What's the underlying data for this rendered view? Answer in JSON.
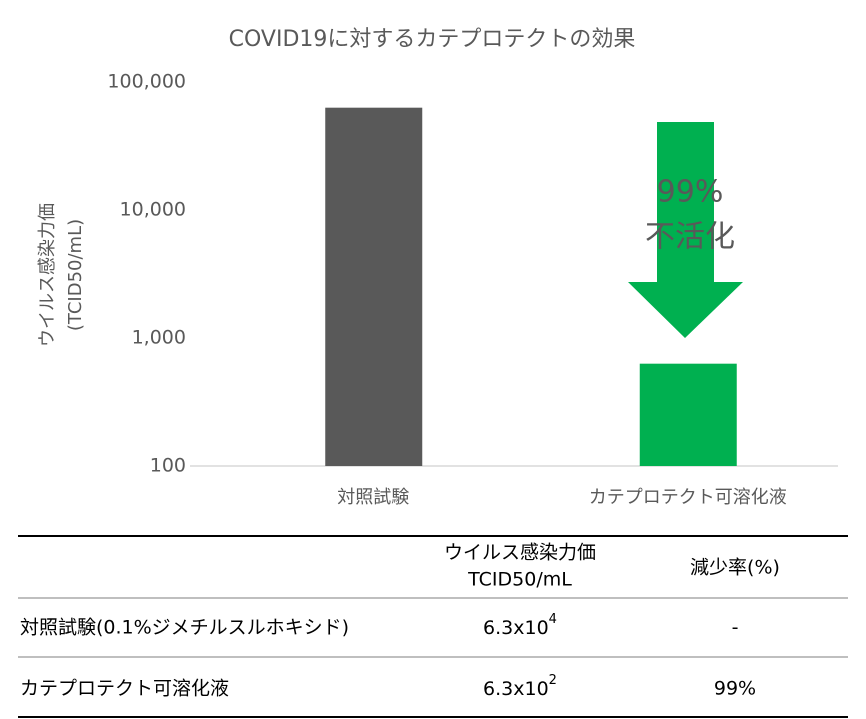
{
  "chart_data": {
    "type": "bar",
    "title": "COVID19に対するカテプロテクトの効果",
    "y_label": [
      "ウイルス感染力価",
      "(TCID50/mL)"
    ],
    "categories": [
      "対照試験",
      "カテプロテクト可溶化液"
    ],
    "values": [
      63000,
      630
    ],
    "colors": [
      "#595959",
      "#00b050"
    ],
    "log_scale": true,
    "ylim": [
      100,
      100000
    ],
    "yticks": [
      100,
      {
        "value": 1000,
        "label": "1,000"
      },
      {
        "value": 10000,
        "label": "10,000"
      },
      {
        "value": 100000,
        "label": "100,000"
      }
    ],
    "annotation": [
      "99%",
      "不活化"
    ]
  },
  "table": {
    "header": [
      [
        "ウイルス感染力価",
        "TCID50/mL"
      ],
      [
        "減少率(%)"
      ]
    ],
    "rows": [
      [
        "対照試験(0.1%ジメチルスルホキシド)",
        {
          "base": "6.3x10",
          "exp": "4"
        },
        "-"
      ],
      [
        "カテプロテクト可溶化液",
        {
          "base": "6.3x10",
          "exp": "2"
        },
        "99%"
      ]
    ]
  }
}
